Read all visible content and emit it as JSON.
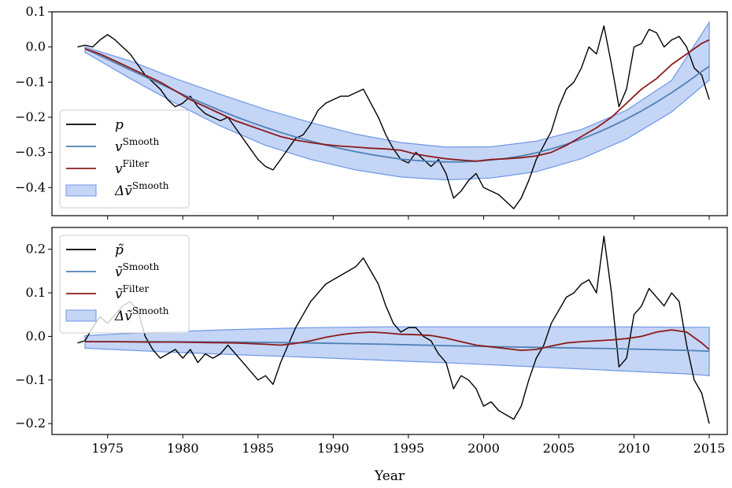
{
  "chart_data": {
    "type": "line",
    "xlabel": "Year",
    "xticks": [
      "1975",
      "1980",
      "1985",
      "1990",
      "1995",
      "2000",
      "2005",
      "2010",
      "2015"
    ],
    "xlim": [
      1971.3,
      2016.2
    ],
    "panels": [
      {
        "id": "top",
        "ylim": [
          -0.48,
          0.1
        ],
        "yticks": [
          0.1,
          0.0,
          -0.1,
          -0.2,
          -0.3,
          -0.4
        ],
        "ytick_labels": [
          "0.1",
          "0.0",
          "−0.1",
          "−0.2",
          "−0.3",
          "−0.4"
        ],
        "legend_placement": "center-left",
        "legend": [
          {
            "base": "p",
            "sup": ""
          },
          {
            "base": "v",
            "sup": "Smooth"
          },
          {
            "base": "v",
            "sup": "Filter"
          },
          {
            "base": "Δv̄",
            "sup": "Smooth"
          }
        ],
        "series": [
          {
            "key": "p",
            "color": "#000000",
            "width": 1.4,
            "x": [
              1973.0,
              1973.5,
              1974.0,
              1974.5,
              1975.0,
              1975.5,
              1976.0,
              1976.5,
              1977.0,
              1977.5,
              1978.0,
              1978.5,
              1979.0,
              1979.5,
              1980.0,
              1980.5,
              1981.0,
              1981.5,
              1982.0,
              1982.5,
              1983.0,
              1983.5,
              1984.0,
              1984.5,
              1985.0,
              1985.5,
              1986.0,
              1986.5,
              1987.0,
              1987.5,
              1988.0,
              1988.5,
              1989.0,
              1989.5,
              1990.0,
              1990.5,
              1991.0,
              1991.5,
              1992.0,
              1992.5,
              1993.0,
              1993.5,
              1994.0,
              1994.5,
              1995.0,
              1995.5,
              1996.0,
              1996.5,
              1997.0,
              1997.5,
              1998.0,
              1998.5,
              1999.0,
              1999.5,
              2000.0,
              2000.5,
              2001.0,
              2001.5,
              2002.0,
              2002.5,
              2003.0,
              2003.5,
              2004.0,
              2004.5,
              2005.0,
              2005.5,
              2006.0,
              2006.5,
              2007.0,
              2007.5,
              2008.0,
              2008.5,
              2009.0,
              2009.5,
              2010.0,
              2010.5,
              2011.0,
              2011.5,
              2012.0,
              2012.5,
              2013.0,
              2013.5,
              2014.0,
              2014.5,
              2015.0
            ],
            "y": [
              0.0,
              0.005,
              0.0,
              0.02,
              0.035,
              0.02,
              0.0,
              -0.02,
              -0.05,
              -0.08,
              -0.1,
              -0.12,
              -0.15,
              -0.17,
              -0.16,
              -0.14,
              -0.17,
              -0.19,
              -0.2,
              -0.21,
              -0.2,
              -0.23,
              -0.26,
              -0.29,
              -0.32,
              -0.34,
              -0.35,
              -0.32,
              -0.29,
              -0.26,
              -0.25,
              -0.22,
              -0.18,
              -0.16,
              -0.15,
              -0.14,
              -0.14,
              -0.13,
              -0.12,
              -0.16,
              -0.2,
              -0.25,
              -0.29,
              -0.32,
              -0.33,
              -0.3,
              -0.32,
              -0.34,
              -0.32,
              -0.36,
              -0.43,
              -0.41,
              -0.38,
              -0.36,
              -0.4,
              -0.41,
              -0.42,
              -0.44,
              -0.46,
              -0.43,
              -0.38,
              -0.32,
              -0.28,
              -0.24,
              -0.17,
              -0.12,
              -0.1,
              -0.06,
              0.0,
              -0.02,
              0.06,
              -0.05,
              -0.17,
              -0.12,
              0.0,
              0.01,
              0.05,
              0.04,
              0.0,
              0.02,
              0.03,
              0.0,
              -0.06,
              -0.08,
              -0.15
            ]
          },
          {
            "key": "v_smooth",
            "color": "#4f81b5",
            "width": 1.8,
            "x": [
              1973.5,
              1974.5,
              1975.5,
              1976.5,
              1977.5,
              1978.5,
              1979.5,
              1980.5,
              1981.5,
              1982.5,
              1983.5,
              1984.5,
              1985.5,
              1986.5,
              1987.5,
              1988.5,
              1989.5,
              1990.5,
              1991.5,
              1992.5,
              1993.5,
              1994.5,
              1995.5,
              1996.5,
              1997.5,
              1998.5,
              1999.5,
              2000.5,
              2001.5,
              2002.5,
              2003.5,
              2004.5,
              2005.5,
              2006.5,
              2007.5,
              2008.5,
              2009.5,
              2010.5,
              2011.5,
              2012.5,
              2013.5,
              2014.5,
              2015.0
            ],
            "y": [
              -0.005,
              -0.025,
              -0.045,
              -0.065,
              -0.085,
              -0.105,
              -0.125,
              -0.145,
              -0.163,
              -0.181,
              -0.198,
              -0.214,
              -0.229,
              -0.243,
              -0.256,
              -0.268,
              -0.279,
              -0.289,
              -0.298,
              -0.306,
              -0.313,
              -0.319,
              -0.323,
              -0.326,
              -0.327,
              -0.327,
              -0.325,
              -0.322,
              -0.317,
              -0.31,
              -0.301,
              -0.29,
              -0.277,
              -0.262,
              -0.245,
              -0.226,
              -0.205,
              -0.182,
              -0.157,
              -0.13,
              -0.101,
              -0.07,
              -0.055
            ]
          },
          {
            "key": "v_filter",
            "color": "#8b1a1a",
            "width": 1.8,
            "x": [
              1973.5,
              1974.5,
              1975.5,
              1976.5,
              1977.5,
              1978.5,
              1979.5,
              1980.5,
              1981.5,
              1982.5,
              1983.5,
              1984.5,
              1985.5,
              1986.5,
              1987.5,
              1988.5,
              1989.5,
              1990.5,
              1991.5,
              1992.5,
              1993.5,
              1994.5,
              1995.5,
              1996.5,
              1997.5,
              1998.5,
              1999.5,
              2000.5,
              2001.5,
              2002.5,
              2003.5,
              2004.5,
              2005.5,
              2006.5,
              2007.5,
              2008.5,
              2009.5,
              2010.5,
              2011.5,
              2012.5,
              2013.5,
              2014.5,
              2015.0
            ],
            "y": [
              -0.005,
              -0.02,
              -0.04,
              -0.06,
              -0.08,
              -0.1,
              -0.125,
              -0.15,
              -0.17,
              -0.19,
              -0.21,
              -0.225,
              -0.24,
              -0.255,
              -0.265,
              -0.272,
              -0.278,
              -0.282,
              -0.285,
              -0.288,
              -0.29,
              -0.294,
              -0.305,
              -0.312,
              -0.318,
              -0.322,
              -0.325,
              -0.32,
              -0.318,
              -0.315,
              -0.31,
              -0.3,
              -0.28,
              -0.255,
              -0.23,
              -0.2,
              -0.16,
              -0.12,
              -0.09,
              -0.05,
              -0.02,
              0.01,
              0.02
            ]
          }
        ],
        "band": {
          "key": "dv_smooth",
          "color": "#6d96e6",
          "opacity": 0.4,
          "x": [
            1973.5,
            1976.5,
            1979.5,
            1982.5,
            1985.5,
            1988.5,
            1991.5,
            1994.5,
            1997.5,
            2000.5,
            2003.5,
            2006.5,
            2009.5,
            2012.5,
            2015.0
          ],
          "lower": [
            -0.015,
            -0.09,
            -0.16,
            -0.225,
            -0.28,
            -0.32,
            -0.35,
            -0.37,
            -0.378,
            -0.373,
            -0.355,
            -0.318,
            -0.262,
            -0.185,
            -0.095
          ],
          "upper": [
            0.0,
            -0.04,
            -0.09,
            -0.135,
            -0.178,
            -0.215,
            -0.248,
            -0.272,
            -0.285,
            -0.284,
            -0.268,
            -0.235,
            -0.18,
            -0.095,
            0.07
          ]
        }
      },
      {
        "id": "bottom",
        "ylim": [
          -0.225,
          0.25
        ],
        "yticks": [
          0.2,
          0.1,
          0.0,
          -0.1,
          -0.2
        ],
        "ytick_labels": [
          "0.2",
          "0.1",
          "0.0",
          "−0.1",
          "−0.2"
        ],
        "legend_placement": "top-left",
        "legend": [
          {
            "base": "p̃",
            "sup": ""
          },
          {
            "base": "ṽ",
            "sup": "Smooth"
          },
          {
            "base": "ṽ",
            "sup": "Filter"
          },
          {
            "base": "Δṽ",
            "sup": "Smooth"
          }
        ],
        "series": [
          {
            "key": "p_tilde",
            "color": "#000000",
            "width": 1.4,
            "x": [
              1973.0,
              1973.5,
              1974.0,
              1974.5,
              1975.0,
              1975.5,
              1976.0,
              1976.5,
              1977.0,
              1977.5,
              1978.0,
              1978.5,
              1979.0,
              1979.5,
              1980.0,
              1980.5,
              1981.0,
              1981.5,
              1982.0,
              1982.5,
              1983.0,
              1983.5,
              1984.0,
              1984.5,
              1985.0,
              1985.5,
              1986.0,
              1986.5,
              1987.0,
              1987.5,
              1988.0,
              1988.5,
              1989.0,
              1989.5,
              1990.0,
              1990.5,
              1991.0,
              1991.5,
              1992.0,
              1992.5,
              1993.0,
              1993.5,
              1994.0,
              1994.5,
              1995.0,
              1995.5,
              1996.0,
              1996.5,
              1997.0,
              1997.5,
              1998.0,
              1998.5,
              1999.0,
              1999.5,
              2000.0,
              2000.5,
              2001.0,
              2001.5,
              2002.0,
              2002.5,
              2003.0,
              2003.5,
              2004.0,
              2004.5,
              2005.0,
              2005.5,
              2006.0,
              2006.5,
              2007.0,
              2007.5,
              2008.0,
              2008.5,
              2009.0,
              2009.5,
              2010.0,
              2010.5,
              2011.0,
              2011.5,
              2012.0,
              2012.5,
              2013.0,
              2013.5,
              2014.0,
              2014.5,
              2015.0
            ],
            "y": [
              -0.015,
              -0.01,
              0.02,
              0.045,
              0.03,
              0.05,
              0.07,
              0.08,
              0.06,
              0.0,
              -0.03,
              -0.05,
              -0.04,
              -0.03,
              -0.05,
              -0.03,
              -0.06,
              -0.04,
              -0.05,
              -0.04,
              -0.02,
              -0.04,
              -0.06,
              -0.08,
              -0.1,
              -0.09,
              -0.11,
              -0.06,
              -0.02,
              0.02,
              0.05,
              0.08,
              0.1,
              0.12,
              0.13,
              0.14,
              0.15,
              0.16,
              0.18,
              0.15,
              0.12,
              0.07,
              0.03,
              0.01,
              0.02,
              0.02,
              0.0,
              -0.01,
              -0.04,
              -0.06,
              -0.12,
              -0.09,
              -0.1,
              -0.12,
              -0.16,
              -0.15,
              -0.17,
              -0.18,
              -0.19,
              -0.16,
              -0.1,
              -0.05,
              -0.02,
              0.03,
              0.06,
              0.09,
              0.1,
              0.12,
              0.13,
              0.1,
              0.23,
              0.1,
              -0.07,
              -0.05,
              0.05,
              0.07,
              0.11,
              0.09,
              0.07,
              0.1,
              0.08,
              -0.02,
              -0.1,
              -0.13,
              -0.2
            ]
          },
          {
            "key": "v_tilde_smooth",
            "color": "#4f81b5",
            "width": 1.8,
            "x": [
              1973.5,
              1978.5,
              1983.5,
              1988.5,
              1993.5,
              1998.5,
              2003.5,
              2008.5,
              2013.5,
              2015.0
            ],
            "y": [
              -0.012,
              -0.012,
              -0.013,
              -0.015,
              -0.018,
              -0.022,
              -0.025,
              -0.028,
              -0.032,
              -0.034
            ]
          },
          {
            "key": "v_tilde_filter",
            "color": "#8b1a1a",
            "width": 1.8,
            "x": [
              1973.5,
              1975.5,
              1977.5,
              1979.5,
              1981.5,
              1983.5,
              1985.5,
              1986.5,
              1987.5,
              1988.5,
              1989.5,
              1990.5,
              1991.5,
              1992.5,
              1993.5,
              1994.5,
              1995.5,
              1996.5,
              1997.5,
              1998.5,
              1999.5,
              2000.5,
              2001.5,
              2002.5,
              2003.5,
              2004.5,
              2005.5,
              2006.5,
              2007.5,
              2008.5,
              2009.5,
              2010.5,
              2011.5,
              2012.5,
              2013.5,
              2014.5,
              2015.0
            ],
            "y": [
              -0.012,
              -0.012,
              -0.013,
              -0.013,
              -0.014,
              -0.015,
              -0.018,
              -0.02,
              -0.016,
              -0.01,
              -0.002,
              0.004,
              0.008,
              0.01,
              0.008,
              0.005,
              0.004,
              0.002,
              -0.004,
              -0.012,
              -0.02,
              -0.024,
              -0.028,
              -0.032,
              -0.03,
              -0.022,
              -0.015,
              -0.012,
              -0.01,
              -0.008,
              -0.005,
              0.0,
              0.01,
              0.015,
              0.01,
              -0.015,
              -0.03
            ]
          }
        ],
        "band": {
          "key": "dv_tilde_smooth",
          "color": "#6d96e6",
          "opacity": 0.4,
          "x": [
            1973.5,
            1978.5,
            1983.5,
            1988.5,
            1993.5,
            1998.5,
            2003.5,
            2008.5,
            2013.5,
            2015.0
          ],
          "lower": [
            -0.027,
            -0.035,
            -0.042,
            -0.048,
            -0.055,
            -0.062,
            -0.07,
            -0.078,
            -0.086,
            -0.09
          ],
          "upper": [
            0.002,
            0.01,
            0.016,
            0.02,
            0.022,
            0.022,
            0.022,
            0.022,
            0.021,
            0.021
          ]
        }
      }
    ]
  }
}
